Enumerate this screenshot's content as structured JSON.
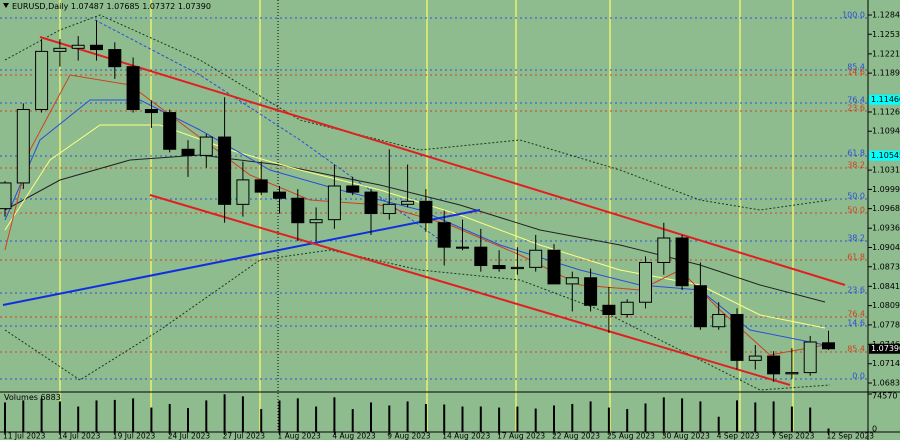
{
  "chart_data": {
    "type": "candlestick",
    "title": "EURUSD,Daily",
    "title_values": [
      "1.07487",
      "1.07685",
      "1.07372",
      "1.07390"
    ],
    "background": "#8fbc8f",
    "up_color": "#8fbc8f",
    "down_color": "#000000",
    "categories": [
      "11 Jul 2023",
      null,
      null,
      "14 Jul 2023",
      null,
      null,
      "19 Jul 2023",
      null,
      null,
      "24 Jul 2023",
      null,
      null,
      "27 Jul 2023",
      null,
      null,
      "1 Aug 2023",
      null,
      null,
      "4 Aug 2023",
      null,
      null,
      "9 Aug 2023",
      null,
      null,
      "14 Aug 2023",
      null,
      null,
      "17 Aug 2023",
      null,
      null,
      "22 Aug 2023",
      null,
      null,
      "25 Aug 2023",
      null,
      null,
      "30 Aug 2023",
      null,
      null,
      "4 Sep 2023",
      null,
      null,
      "7 Sep 2023",
      null,
      null,
      "12 Sep 2023"
    ],
    "open": [
      1.0968,
      1.101,
      1.113,
      1.1225,
      1.123,
      1.1235,
      1.1228,
      1.12,
      1.113,
      1.1125,
      1.1065,
      1.1055,
      1.1085,
      1.0975,
      1.1015,
      1.0995,
      1.0985,
      1.0945,
      1.095,
      1.1005,
      1.0995,
      1.096,
      1.0975,
      1.098,
      1.0945,
      1.0905,
      1.0905,
      1.0875,
      1.087,
      1.0872,
      1.09,
      1.0845,
      1.0855,
      1.081,
      1.0795,
      1.0815,
      1.088,
      1.092,
      1.0842,
      1.0775,
      1.0795,
      1.072,
      1.0727,
      1.0698,
      1.07,
      1.07487
    ],
    "high": [
      1.1013,
      1.114,
      1.1245,
      1.1245,
      1.125,
      1.1276,
      1.124,
      1.1215,
      1.1145,
      1.113,
      1.108,
      1.109,
      1.115,
      1.1045,
      1.1045,
      1.1005,
      1.1,
      1.097,
      1.104,
      1.102,
      1.1,
      1.1065,
      1.104,
      1.1,
      1.0965,
      1.095,
      1.0935,
      1.09,
      1.0905,
      1.0925,
      1.091,
      1.0865,
      1.087,
      1.084,
      1.082,
      1.089,
      1.0945,
      1.0925,
      1.088,
      1.0815,
      1.0805,
      1.0745,
      1.0735,
      1.074,
      1.076,
      1.07685
    ],
    "low": [
      1.0955,
      1.1,
      1.1125,
      1.12,
      1.121,
      1.121,
      1.118,
      1.1125,
      1.11,
      1.106,
      1.102,
      1.1035,
      1.0945,
      1.0955,
      1.099,
      1.096,
      1.0915,
      1.0915,
      1.0935,
      1.099,
      1.0925,
      1.095,
      1.097,
      1.093,
      1.0875,
      1.09,
      1.0865,
      1.0865,
      1.086,
      1.0865,
      1.0845,
      1.08,
      1.08,
      1.0765,
      1.079,
      1.0805,
      1.086,
      1.0835,
      1.077,
      1.077,
      1.0705,
      1.0705,
      1.0685,
      1.069,
      1.0695,
      1.07372
    ],
    "close": [
      1.101,
      1.113,
      1.1225,
      1.123,
      1.1235,
      1.1228,
      1.12,
      1.113,
      1.1125,
      1.1065,
      1.1055,
      1.1085,
      1.0975,
      1.1015,
      1.0995,
      1.0985,
      1.0945,
      1.095,
      1.1005,
      1.0995,
      1.096,
      1.0975,
      1.098,
      1.0945,
      1.0905,
      1.0905,
      1.0875,
      1.087,
      1.0872,
      1.09,
      1.0845,
      1.0855,
      1.081,
      1.0795,
      1.0815,
      1.088,
      1.092,
      1.0842,
      1.0775,
      1.0795,
      1.072,
      1.0727,
      1.0698,
      1.07,
      1.075,
      1.0739
    ],
    "ylim": [
      1.06683,
      1.1309
    ],
    "yticks": [
      1.12845,
      {
        "value": 1.1253,
        "label": "1.12530"
      },
      {
        "value": 1.1221,
        "label": "1.12210"
      },
      1.11895,
      {
        "value": 1.1126,
        "label": "1.11260"
      },
      1.10945,
      {
        "value": 1.1031,
        "label": "1.10310"
      },
      1.09995,
      {
        "value": 1.0968,
        "label": "1.09680"
      },
      {
        "value": 1.0936,
        "label": "1.09360"
      },
      1.09045,
      {
        "value": 1.0873,
        "label": "1.08730"
      },
      {
        "value": 1.0841,
        "label": "1.08410"
      },
      1.08095,
      {
        "value": 1.0778,
        "label": "1.07780"
      },
      {
        "value": 1.0746,
        "label": "1.07460"
      },
      1.07145,
      {
        "value": 1.0683,
        "label": "1.06830"
      }
    ],
    "price_markers": [
      {
        "value": 1.1146,
        "label": "1.11460",
        "color": "#00ffff"
      },
      {
        "value": 1.10545,
        "label": "1.10545",
        "color": "#00ffff"
      },
      {
        "value": 1.0739,
        "label": "1.07390",
        "color": "#000000"
      }
    ],
    "fib_levels": [
      {
        "value": 1.12796,
        "label": "100.0",
        "color": "#2a4fd8"
      },
      {
        "value": 1.11946,
        "label": "85.4",
        "color": "#2a4fd8"
      },
      {
        "value": 1.11864,
        "label": "14.6",
        "color": "#d04020"
      },
      {
        "value": 1.11407,
        "label": "76.4",
        "color": "#2a4fd8"
      },
      {
        "value": 1.11276,
        "label": "23.6",
        "color": "#d04020"
      },
      {
        "value": 1.1054,
        "label": "61.8",
        "color": "#2a4fd8"
      },
      {
        "value": 1.10344,
        "label": "38.2",
        "color": "#d04020"
      },
      {
        "value": 1.09838,
        "label": "50.0",
        "color": "#2a4fd8"
      },
      {
        "value": 1.09609,
        "label": "50.0",
        "color": "#d04020"
      },
      {
        "value": 1.09151,
        "label": "38.2",
        "color": "#2a4fd8"
      },
      {
        "value": 1.0884,
        "label": "61.8",
        "color": "#d04020"
      },
      {
        "value": 1.08301,
        "label": "23.6",
        "color": "#2a4fd8"
      },
      {
        "value": 1.07909,
        "label": "76.4",
        "color": "#d04020"
      },
      {
        "value": 1.07762,
        "label": "14.6",
        "color": "#2a4fd8"
      },
      {
        "value": 1.07337,
        "label": "85.4",
        "color": "#d04020"
      },
      {
        "value": 1.06895,
        "label": "0.0",
        "color": "#2a4fd8"
      }
    ],
    "volume": {
      "name": "Volumes",
      "values": [
        58000,
        62000,
        66000,
        60000,
        50000,
        62000,
        63000,
        66000,
        48000,
        55000,
        47000,
        62000,
        74000,
        70000,
        45000,
        62000,
        66000,
        50000,
        68000,
        45000,
        58000,
        52000,
        60000,
        55000,
        54000,
        50000,
        50000,
        48000,
        50000,
        46000,
        52000,
        55000,
        60000,
        48000,
        45000,
        56000,
        68000,
        66000,
        60000,
        30000,
        62000,
        58000,
        60000,
        50000,
        48000,
        6883
      ],
      "ylim": [
        0,
        74570
      ],
      "yticks": [
        74570,
        0
      ]
    }
  }
}
